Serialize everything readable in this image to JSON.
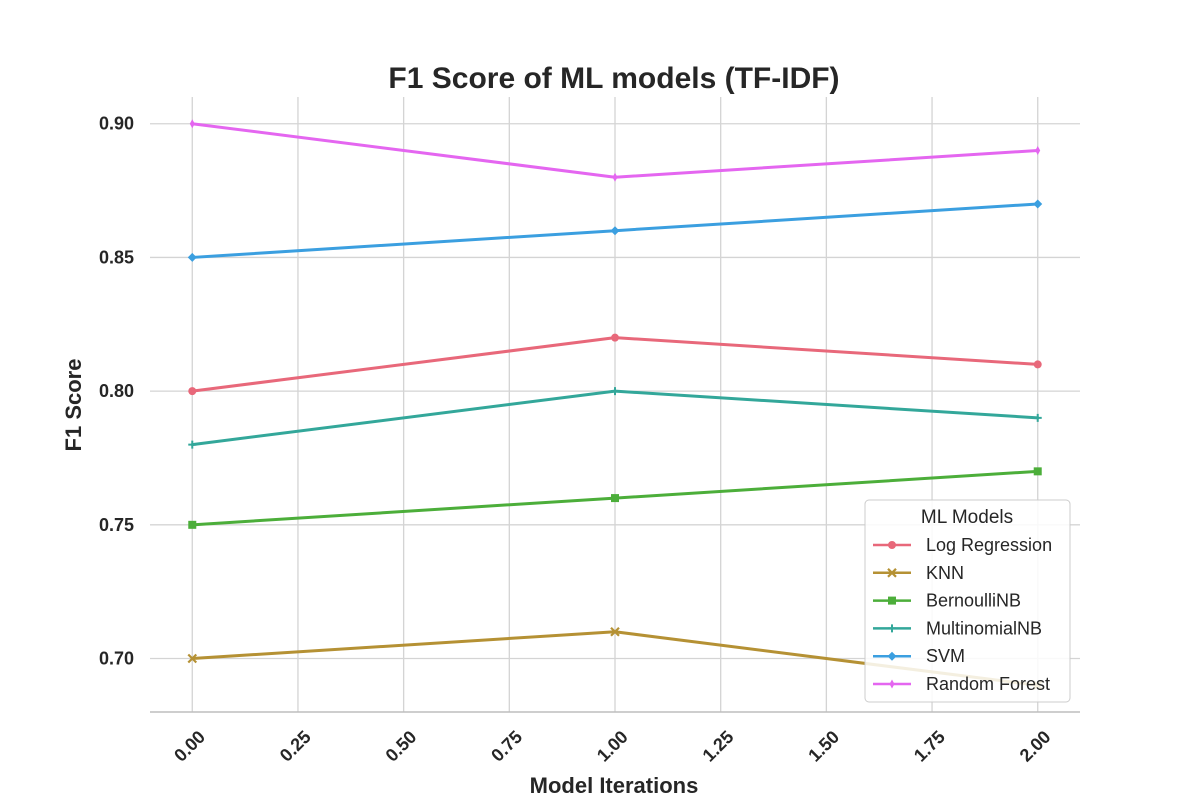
{
  "chart_data": {
    "type": "line",
    "title": "F1 Score of ML models (TF-IDF)",
    "xlabel": "Model Iterations",
    "ylabel": "F1 Score",
    "x": [
      0,
      1,
      2
    ],
    "xlim": [
      -0.1,
      2.1
    ],
    "ylim": [
      0.68,
      0.91
    ],
    "xticks": [
      "0.00",
      "0.25",
      "0.50",
      "0.75",
      "1.00",
      "1.25",
      "1.50",
      "1.75",
      "2.00"
    ],
    "xtick_values": [
      0,
      0.25,
      0.5,
      0.75,
      1.0,
      1.25,
      1.5,
      1.75,
      2.0
    ],
    "yticks": [
      "0.70",
      "0.75",
      "0.80",
      "0.85",
      "0.90"
    ],
    "ytick_values": [
      0.7,
      0.75,
      0.8,
      0.85,
      0.9
    ],
    "grid": true,
    "legend_title": "ML Models",
    "legend_position": "bottom-right",
    "series": [
      {
        "name": "Log Regression",
        "values": [
          0.8,
          0.82,
          0.81
        ],
        "color": "#e8687a",
        "marker": "circle"
      },
      {
        "name": "KNN",
        "values": [
          0.7,
          0.71,
          0.69
        ],
        "color": "#b59134",
        "marker": "x"
      },
      {
        "name": "BernoulliNB",
        "values": [
          0.75,
          0.76,
          0.77
        ],
        "color": "#4cae3a",
        "marker": "square"
      },
      {
        "name": "MultinomialNB",
        "values": [
          0.78,
          0.8,
          0.79
        ],
        "color": "#33a79a",
        "marker": "plus"
      },
      {
        "name": "SVM",
        "values": [
          0.85,
          0.86,
          0.87
        ],
        "color": "#3b9fe0",
        "marker": "diamond"
      },
      {
        "name": "Random Forest",
        "values": [
          0.9,
          0.88,
          0.89
        ],
        "color": "#e466f0",
        "marker": "thin-diamond"
      }
    ]
  }
}
